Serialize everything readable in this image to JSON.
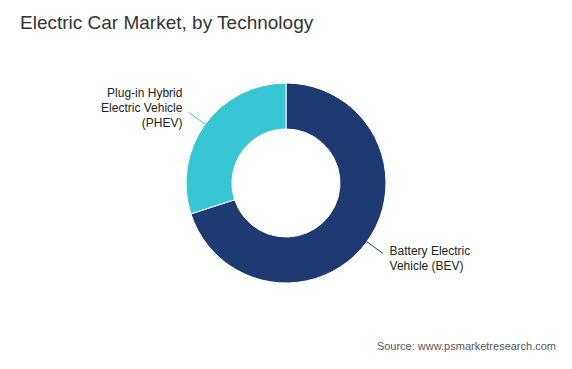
{
  "chart_data": {
    "type": "donut",
    "title": "Electric Car Market, by Technology",
    "categories": [
      "Battery Electric\nVehicle (BEV)",
      "Plug-in Hybrid\nElectric Vehicle\n(PHEV)"
    ],
    "values": [
      70,
      30
    ],
    "colors": [
      "#1e3a72",
      "#38c5d4"
    ],
    "annotations": [
      "Source: www.psmarketresearch.com"
    ]
  }
}
